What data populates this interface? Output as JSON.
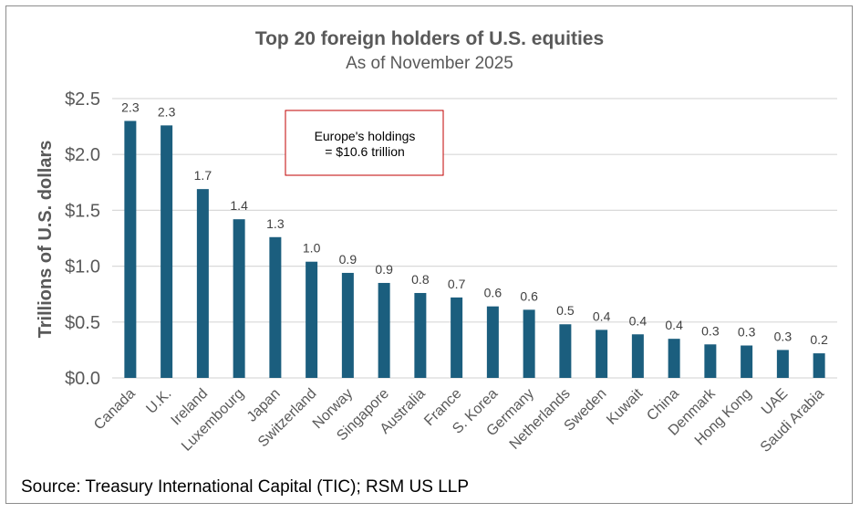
{
  "chart_data": {
    "type": "bar",
    "title": "Top 20 foreign holders of U.S. equities",
    "subtitle": "As of November 2025",
    "ylabel": "Trillions of U.S. dollars",
    "xlabel": "",
    "ylim": [
      0,
      2.5
    ],
    "yticks": [
      0,
      0.5,
      1.0,
      1.5,
      2.0,
      2.5
    ],
    "ytick_labels": [
      "$0.0",
      "$0.5",
      "$1.0",
      "$1.5",
      "$2.0",
      "$2.5"
    ],
    "grid": true,
    "bar_color": "#1b5e7e",
    "categories": [
      "Canada",
      "U.K.",
      "Ireland",
      "Luxembourg",
      "Japan",
      "Switzerland",
      "Norway",
      "Singapore",
      "Australia",
      "France",
      "S. Korea",
      "Germany",
      "Netherlands",
      "Sweden",
      "Kuwait",
      "China",
      "Denmark",
      "Hong Kong",
      "UAE",
      "Saudi Arabia"
    ],
    "values": [
      2.3,
      2.26,
      1.69,
      1.42,
      1.26,
      1.04,
      0.94,
      0.85,
      0.76,
      0.72,
      0.64,
      0.61,
      0.48,
      0.43,
      0.39,
      0.35,
      0.3,
      0.29,
      0.25,
      0.22
    ],
    "data_labels": [
      "2.3",
      "2.3",
      "1.7",
      "1.4",
      "1.3",
      "1.0",
      "0.9",
      "0.9",
      "0.8",
      "0.7",
      "0.6",
      "0.6",
      "0.5",
      "0.4",
      "0.4",
      "0.4",
      "0.3",
      "0.3",
      "0.3",
      "0.2"
    ],
    "annotation": {
      "lines": [
        "Europe's holdings",
        "= $10.6 trillion"
      ],
      "border_color": "#c00000"
    },
    "source": "Source: Treasury International Capital (TIC); RSM US LLP"
  }
}
